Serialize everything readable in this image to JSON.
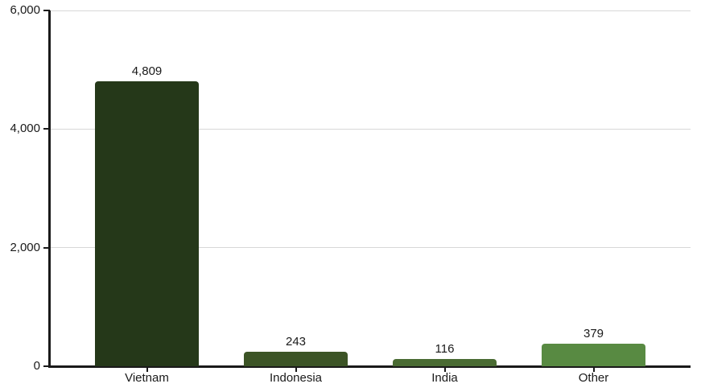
{
  "chart_data": {
    "type": "bar",
    "title": "",
    "xlabel": "",
    "ylabel": "",
    "categories": [
      "Vietnam",
      "Indonesia",
      "India",
      "Other"
    ],
    "values": [
      4809,
      243,
      116,
      379
    ],
    "value_labels": [
      "4,809",
      "243",
      "116",
      "379"
    ],
    "bar_colors": [
      "#253819",
      "#3c5426",
      "#4a6b33",
      "#588a42"
    ],
    "ylim": [
      0,
      6000
    ],
    "yticks": [
      0,
      2000,
      4000,
      6000
    ],
    "ytick_labels": [
      "0",
      "2,000",
      "4,000",
      "6,000"
    ],
    "grid": "horizontal gridlines at labeled y ticks",
    "legend": "none",
    "axis_color": "#1a1a1a",
    "grid_color": "#d8d8d8",
    "text_color": "#1a1a1a",
    "background": "#ffffff"
  }
}
